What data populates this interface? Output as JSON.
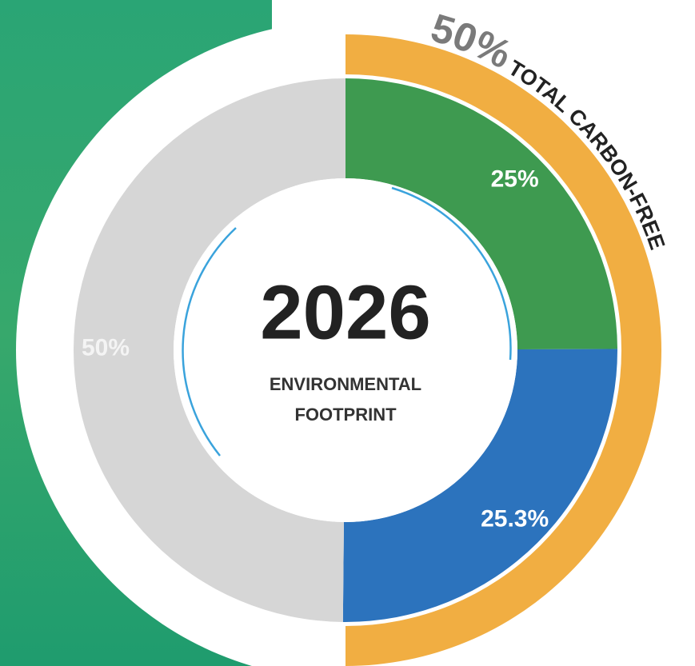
{
  "chart_data": {
    "type": "donut",
    "title": "2026",
    "subtitle": [
      "ENVIRONMENTAL",
      "FOOTPRINT"
    ],
    "values": [
      25,
      25.3,
      50
    ],
    "value_labels": [
      "25%",
      "25.3%",
      "50%"
    ],
    "colors": [
      "#3e9a50",
      "#2c73bd",
      "#d6d6d6"
    ],
    "outer": {
      "value": 50,
      "value_label": "50%",
      "label": "TOTAL CARBON-FREE",
      "color": "#f1ae42"
    }
  }
}
